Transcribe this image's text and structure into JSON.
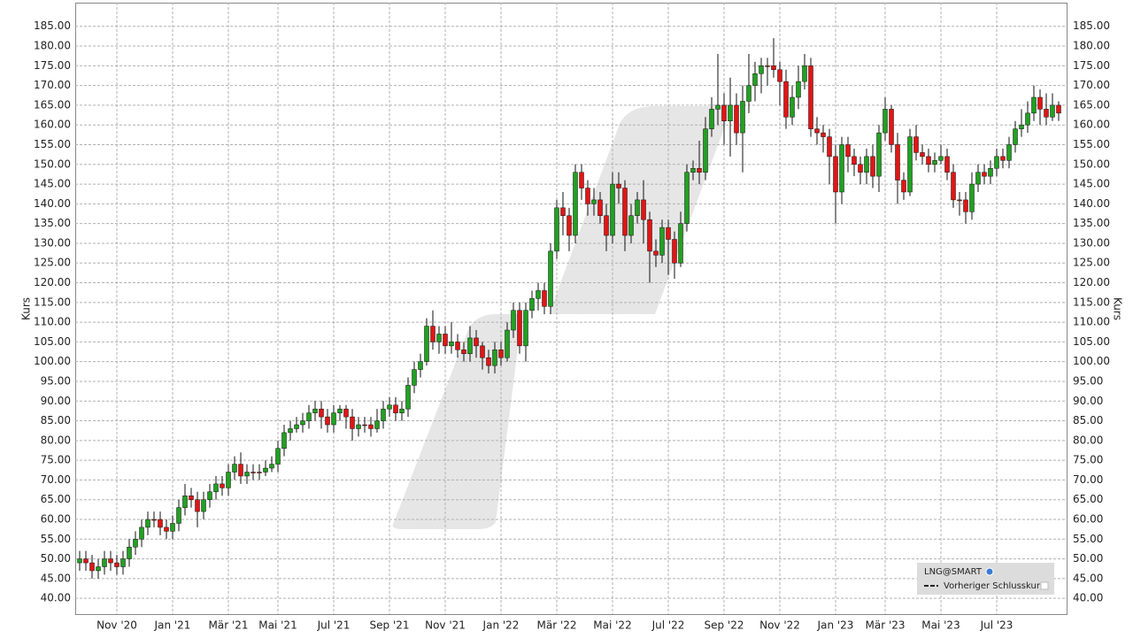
{
  "chart_data": {
    "type": "candlestick",
    "ylabel": "Kurs",
    "y2label": "Kurs",
    "ylim": [
      36,
      191
    ],
    "yticks": [
      {
        "value": 40,
        "label": "40.00"
      },
      {
        "value": 45,
        "label": "45.00"
      },
      {
        "value": 50,
        "label": "50.00"
      },
      {
        "value": 55,
        "label": "55.00"
      },
      {
        "value": 60,
        "label": "60.00"
      },
      {
        "value": 65,
        "label": "65.00"
      },
      {
        "value": 70,
        "label": "70.00"
      },
      {
        "value": 75,
        "label": "75.00"
      },
      {
        "value": 80,
        "label": "80.00"
      },
      {
        "value": 85,
        "label": "85.00"
      },
      {
        "value": 90,
        "label": "90.00"
      },
      {
        "value": 95,
        "label": "95.00"
      },
      {
        "value": 100,
        "label": "100.00"
      },
      {
        "value": 105,
        "label": "105.00"
      },
      {
        "value": 110,
        "label": "110.00"
      },
      {
        "value": 115,
        "label": "115.00"
      },
      {
        "value": 120,
        "label": "120.00"
      },
      {
        "value": 125,
        "label": "125.00"
      },
      {
        "value": 130,
        "label": "130.00"
      },
      {
        "value": 135,
        "label": "135.00"
      },
      {
        "value": 140,
        "label": "140.00"
      },
      {
        "value": 145,
        "label": "145.00"
      },
      {
        "value": 150,
        "label": "150.00"
      },
      {
        "value": 155,
        "label": "155.00"
      },
      {
        "value": 160,
        "label": "160.00"
      },
      {
        "value": 165,
        "label": "165.00"
      },
      {
        "value": 170,
        "label": "170.00"
      },
      {
        "value": 175,
        "label": "175.00"
      },
      {
        "value": 180,
        "label": "180.00"
      },
      {
        "value": 185,
        "label": "185.00"
      }
    ],
    "grid": true,
    "up_color": "#22a022",
    "down_color": "#e21515",
    "legend": {
      "position": "lower right",
      "entries": [
        "LNG@SMART",
        "Vorheriger Schlusskurs"
      ]
    },
    "categories": [
      null,
      null,
      null,
      null,
      null,
      null,
      "Nov '20",
      null,
      null,
      null,
      null,
      null,
      null,
      null,
      null,
      "Jan '21",
      null,
      null,
      null,
      null,
      null,
      null,
      null,
      null,
      "Mär '21",
      null,
      null,
      null,
      null,
      null,
      null,
      null,
      "Mai '21",
      null,
      null,
      null,
      null,
      null,
      null,
      null,
      null,
      "Jul '21",
      null,
      null,
      null,
      null,
      null,
      null,
      null,
      null,
      "Sep '21",
      null,
      null,
      null,
      null,
      null,
      null,
      null,
      null,
      "Nov '21",
      null,
      null,
      null,
      null,
      null,
      null,
      null,
      null,
      "Jan '22",
      null,
      null,
      null,
      null,
      null,
      null,
      null,
      null,
      "Mär '22",
      null,
      null,
      null,
      null,
      null,
      null,
      null,
      null,
      "Mai '22",
      null,
      null,
      null,
      null,
      null,
      null,
      null,
      null,
      "Jul '22",
      null,
      null,
      null,
      null,
      null,
      null,
      null,
      null,
      "Sep '22",
      null,
      null,
      null,
      null,
      null,
      null,
      null,
      null,
      "Nov '22",
      null,
      null,
      null,
      null,
      null,
      null,
      null,
      null,
      "Jan '23",
      null,
      null,
      null,
      null,
      null,
      null,
      null,
      "Mär '23",
      null,
      null,
      null,
      null,
      null,
      null,
      null,
      null,
      "Mai '23",
      null,
      null,
      null,
      null,
      null,
      null,
      null,
      null,
      "Jul '23",
      null,
      null,
      null,
      null,
      null,
      null,
      null,
      null,
      null,
      null
    ],
    "series": [
      {
        "name": "LNG@SMART",
        "open": [
          49,
          50,
          49,
          47,
          48,
          50,
          49,
          48,
          50,
          53,
          55,
          58,
          60,
          60,
          58,
          57,
          59,
          63,
          66,
          65,
          62,
          65,
          67,
          69,
          68,
          72,
          74,
          71,
          72,
          72,
          72,
          73,
          74,
          78,
          82,
          83,
          84,
          85,
          87,
          88,
          86,
          84,
          87,
          88,
          86,
          83,
          84,
          84,
          83,
          85,
          88,
          89,
          87,
          88,
          94,
          98,
          100,
          109,
          105,
          107,
          104,
          105,
          103,
          102,
          106,
          104,
          101,
          99,
          103,
          101,
          108,
          113,
          104,
          113,
          116,
          118,
          114,
          128,
          139,
          137,
          132,
          148,
          144,
          140,
          141,
          137,
          132,
          145,
          144,
          132,
          137,
          141,
          136,
          128,
          127,
          134,
          131,
          125,
          135,
          148,
          149,
          148,
          159,
          164,
          165,
          161,
          165,
          158,
          166,
          170,
          173,
          175,
          175,
          174,
          171,
          162,
          167,
          171,
          175,
          159,
          158,
          157,
          152,
          143,
          155,
          152,
          150,
          148,
          152,
          147,
          158,
          164,
          155,
          146,
          143,
          157,
          153,
          152,
          150,
          151,
          152,
          148,
          141,
          141,
          138,
          145,
          148,
          147,
          149,
          152,
          151,
          155,
          159,
          160,
          163,
          167,
          164,
          162,
          165
        ],
        "high": [
          52,
          52,
          51,
          50,
          52,
          52,
          51,
          52,
          55,
          57,
          60,
          62,
          62,
          62,
          60,
          61,
          65,
          69,
          68,
          67,
          67,
          69,
          71,
          71,
          74,
          76,
          77,
          74,
          74,
          74,
          75,
          76,
          80,
          84,
          85,
          86,
          87,
          89,
          90,
          90,
          88,
          89,
          89,
          89,
          88,
          86,
          86,
          86,
          88,
          90,
          91,
          91,
          90,
          96,
          100,
          102,
          111,
          113,
          109,
          109,
          110,
          107,
          105,
          109,
          108,
          105,
          103,
          105,
          105,
          110,
          115,
          115,
          115,
          118,
          120,
          120,
          130,
          141,
          143,
          139,
          150,
          150,
          146,
          144,
          143,
          140,
          148,
          148,
          146,
          140,
          143,
          146,
          138,
          131,
          136,
          136,
          133,
          138,
          150,
          151,
          156,
          162,
          167,
          178,
          168,
          172,
          168,
          170,
          178,
          176,
          177,
          177,
          182,
          176,
          174,
          170,
          175,
          178,
          177,
          162,
          160,
          159,
          155,
          157,
          157,
          154,
          152,
          154,
          155,
          160,
          167,
          165,
          158,
          148,
          159,
          160,
          155,
          154,
          153,
          155,
          154,
          150,
          143,
          143,
          148,
          150,
          150,
          151,
          154,
          154,
          157,
          161,
          164,
          166,
          170,
          169,
          168,
          168,
          166
        ],
        "low": [
          47,
          47,
          45,
          45,
          46,
          47,
          46,
          46,
          48,
          51,
          53,
          56,
          58,
          56,
          55,
          55,
          57,
          61,
          63,
          58,
          60,
          63,
          65,
          66,
          66,
          70,
          69,
          69,
          70,
          70,
          71,
          72,
          72,
          76,
          80,
          82,
          82,
          83,
          85,
          83,
          82,
          82,
          85,
          83,
          80,
          81,
          82,
          81,
          82,
          83,
          86,
          85,
          85,
          86,
          92,
          96,
          99,
          103,
          102,
          102,
          102,
          101,
          100,
          100,
          101,
          98,
          97,
          97,
          99,
          100,
          106,
          102,
          100,
          111,
          113,
          112,
          112,
          126,
          132,
          128,
          130,
          141,
          137,
          137,
          135,
          128,
          130,
          140,
          128,
          130,
          135,
          130,
          120,
          124,
          125,
          122,
          121,
          124,
          133,
          146,
          145,
          146,
          157,
          160,
          155,
          152,
          155,
          148,
          163,
          166,
          168,
          170,
          172,
          165,
          159,
          160,
          164,
          169,
          157,
          155,
          153,
          145,
          135,
          140,
          148,
          147,
          145,
          145,
          144,
          143,
          156,
          153,
          140,
          141,
          142,
          151,
          150,
          148,
          148,
          150,
          146,
          139,
          137,
          135,
          136,
          143,
          145,
          145,
          147,
          149,
          149,
          153,
          157,
          158,
          161,
          160,
          160,
          161,
          161
        ],
        "close": [
          50,
          49,
          47,
          48,
          50,
          49,
          48,
          50,
          53,
          55,
          58,
          60,
          60,
          58,
          57,
          59,
          63,
          66,
          65,
          62,
          65,
          67,
          69,
          68,
          72,
          74,
          71,
          72,
          72,
          72,
          73,
          74,
          78,
          82,
          83,
          84,
          85,
          87,
          88,
          86,
          84,
          87,
          88,
          86,
          83,
          84,
          84,
          83,
          85,
          88,
          89,
          87,
          88,
          94,
          98,
          100,
          109,
          105,
          107,
          104,
          105,
          103,
          102,
          106,
          104,
          101,
          99,
          103,
          101,
          108,
          113,
          104,
          113,
          116,
          118,
          114,
          128,
          139,
          137,
          132,
          148,
          144,
          140,
          141,
          137,
          132,
          145,
          144,
          132,
          137,
          141,
          136,
          128,
          127,
          134,
          131,
          125,
          135,
          148,
          149,
          148,
          159,
          164,
          165,
          161,
          165,
          158,
          166,
          170,
          173,
          175,
          175,
          174,
          171,
          162,
          167,
          171,
          175,
          159,
          158,
          157,
          152,
          143,
          155,
          152,
          150,
          148,
          152,
          147,
          158,
          164,
          155,
          146,
          143,
          157,
          153,
          152,
          150,
          151,
          152,
          148,
          141,
          141,
          138,
          145,
          148,
          147,
          149,
          152,
          151,
          155,
          159,
          160,
          163,
          167,
          164,
          162,
          165,
          163
        ]
      }
    ]
  }
}
